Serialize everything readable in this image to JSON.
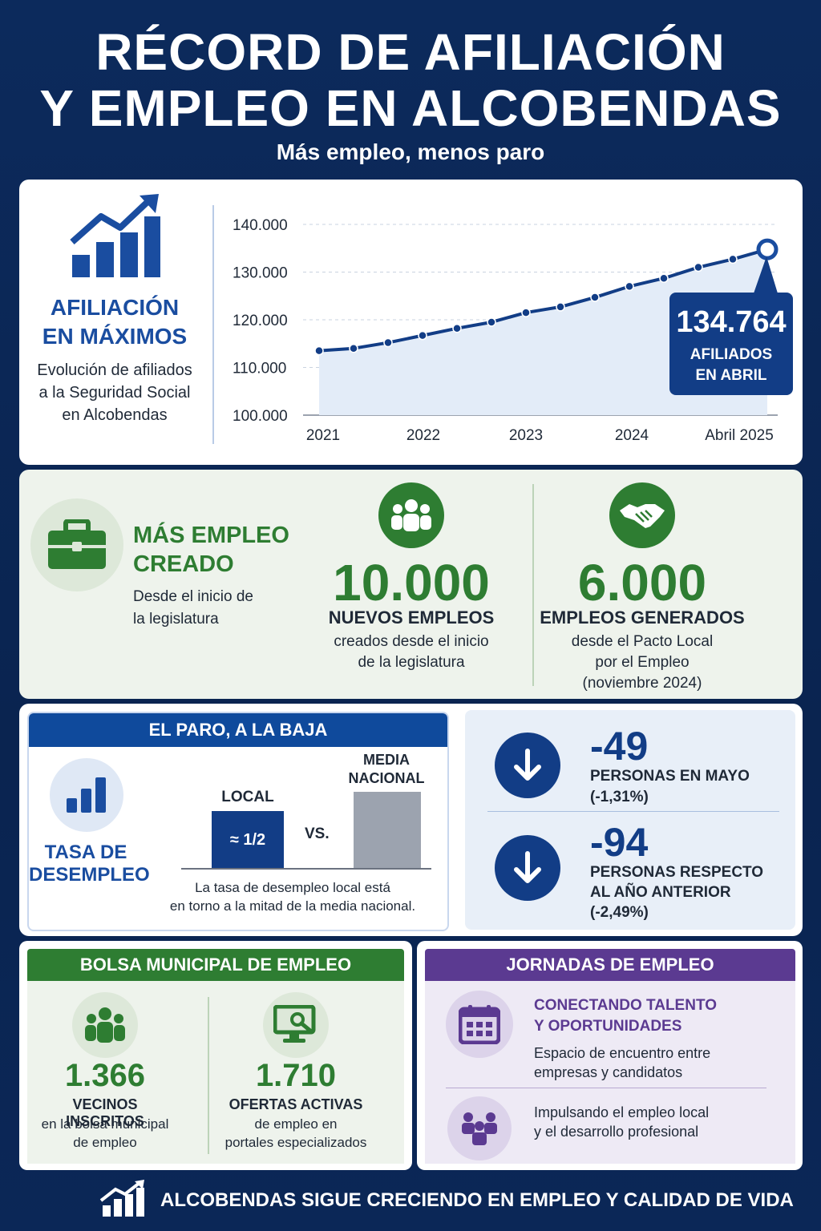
{
  "header": {
    "title_line1": "RÉCORD DE AFILIACIÓN",
    "title_line2": "Y EMPLEO EN ALCOBENDAS",
    "subtitle": "Más empleo, menos paro"
  },
  "afiliacion": {
    "title_line1": "AFILIACIÓN",
    "title_line2": "EN MÁXIMOS",
    "desc_line1": "Evolución de afiliados",
    "desc_line2": "a la Seguridad Social",
    "desc_line3": "en Alcobendas",
    "callout_value": "134.764",
    "callout_line1": "AFILIADOS",
    "callout_line2": "EN ABRIL"
  },
  "chart_data": {
    "type": "area",
    "x": [
      "2021",
      "2021.3",
      "2021.6",
      "2022",
      "2022.3",
      "2022.6",
      "2023",
      "2023.3",
      "2023.6",
      "2024",
      "2024.3",
      "2024.6",
      "2025.0",
      "Abril 2025"
    ],
    "values": [
      113500,
      114000,
      115200,
      116700,
      118200,
      119500,
      121500,
      122700,
      124700,
      127000,
      128700,
      131000,
      132700,
      134764
    ],
    "x_tick_labels": [
      "2021",
      "2022",
      "2023",
      "2024",
      "Abril 2025"
    ],
    "y_tick_labels": [
      "140.000",
      "130.000",
      "120.000",
      "110.000",
      "100.000"
    ],
    "ylim": [
      100000,
      140000
    ],
    "grid": true,
    "colors": {
      "line": "#123d86",
      "fill": "#e3ecf8"
    }
  },
  "empleo": {
    "title_line1": "MÁS EMPLEO",
    "title_line2": "CREADO",
    "desc_line1": "Desde el inicio de",
    "desc_line2": "la legislatura",
    "stat1_value": "10.000",
    "stat1_caption": "NUEVOS EMPLEOS",
    "stat1_sub1": "creados desde el inicio",
    "stat1_sub2": "de la legislatura",
    "stat2_value": "6.000",
    "stat2_caption": "EMPLEOS GENERADOS",
    "stat2_sub1": "desde el Pacto Local",
    "stat2_sub2": "por el Empleo",
    "stat2_sub3": "(noviembre 2024)"
  },
  "paro": {
    "header": "EL PARO, A LA BAJA",
    "label_line1": "TASA DE",
    "label_line2": "DESEMPLEO",
    "local_label": "LOCAL",
    "local_value": "≈ 1/2",
    "vs": "VS.",
    "nacional_label_line1": "MEDIA",
    "nacional_label_line2": "NACIONAL",
    "local_ratio": 0.5,
    "note_line1": "La tasa de desempleo local está",
    "note_line2": "en torno a la mitad de la media nacional.",
    "drop1_value": "-49",
    "drop1_line1": "PERSONAS EN MAYO",
    "drop1_line2": "(-1,31%)",
    "drop2_value": "-94",
    "drop2_line1": "PERSONAS RESPECTO",
    "drop2_line2": "AL AÑO ANTERIOR",
    "drop2_line3": "(-2,49%)"
  },
  "bolsa": {
    "header": "BOLSA MUNICIPAL DE EMPLEO",
    "stat1_value": "1.366",
    "stat1_caption": "VECINOS INSCRITOS",
    "stat1_sub1": "en la bolsa municipal",
    "stat1_sub2": "de empleo",
    "stat2_value": "1.710",
    "stat2_caption": "OFERTAS ACTIVAS",
    "stat2_sub1": "de empleo en",
    "stat2_sub2": "portales especializados"
  },
  "jornadas": {
    "header": "JORNADAS DE EMPLEO",
    "title_line1": "CONECTANDO TALENTO",
    "title_line2": "Y OPORTUNIDADES",
    "desc1_line1": "Espacio de encuentro entre",
    "desc1_line2": "empresas y candidatos",
    "desc2_line1": "Impulsando el empleo local",
    "desc2_line2": "y el desarrollo profesional"
  },
  "footer": {
    "text": "ALCOBENDAS SIGUE CRECIENDO EN EMPLEO Y CALIDAD DE VIDA"
  }
}
